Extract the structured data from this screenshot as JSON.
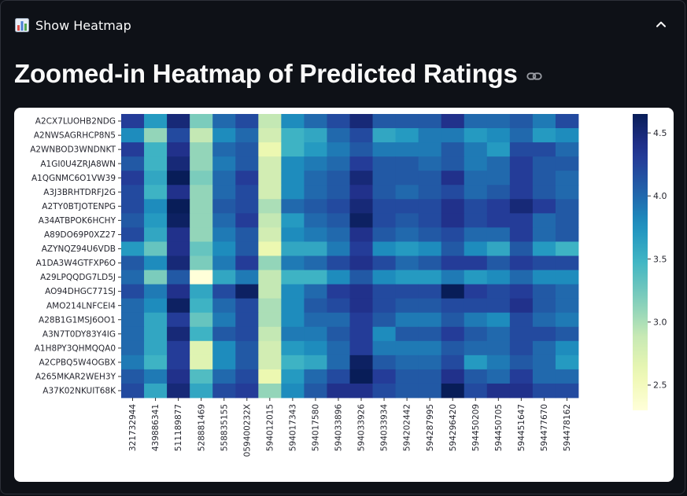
{
  "expander": {
    "label": "Show Heatmap",
    "icon": "bar-chart-icon",
    "chevron": "chevron-up-icon"
  },
  "page": {
    "title": "Zoomed-in Heatmap of Predicted Ratings",
    "link_icon": "link-icon"
  },
  "chart_data": {
    "type": "heatmap",
    "colormap": "YlGnBu",
    "vmin": 2.3,
    "vmax": 4.65,
    "colorbar_ticks": [
      "2.5",
      "3.0",
      "3.5",
      "4.0",
      "4.5"
    ],
    "rows": [
      "A2CX7LUOHB2NDG",
      "A2NWSAGRHCP8N5",
      "A2WNBOD3WNDNKT",
      "A1GI0U4ZRJA8WN",
      "A1QGNMC6O1VW39",
      "A3J3BRHTDRFJ2G",
      "A2TY0BTJOTENPG",
      "A34ATBPOK6HCHY",
      "A89DO69P0XZ27",
      "AZYNQZ94U6VDB",
      "A1DA3W4GTFXP6O",
      "A29LPQQDG7LD5J",
      "AO94DHGC771SJ",
      "AMO214LNFCEI4",
      "A28B1G1MSJ6OO1",
      "A3N7T0DY83Y4IG",
      "A1H8PY3QHMQQA0",
      "A2CPBQ5W4OGBX",
      "A265MKAR2WEH3Y",
      "A37K02NKUIT68K"
    ],
    "columns": [
      "321732944",
      "439886341",
      "511189877",
      "528881469",
      "558835155",
      "059400232X",
      "594012015",
      "594017343",
      "594017580",
      "594033896",
      "594033926",
      "594033934",
      "594202442",
      "594287995",
      "594296420",
      "594450209",
      "594450705",
      "594451647",
      "594477670",
      "594478162"
    ],
    "values": [
      [
        4.3,
        3.7,
        4.5,
        3.2,
        4.0,
        4.2,
        2.9,
        3.8,
        4.0,
        4.2,
        4.5,
        4.1,
        4.1,
        4.1,
        4.4,
        4.0,
        4.0,
        4.1,
        3.9,
        4.2
      ],
      [
        3.8,
        3.1,
        4.2,
        2.9,
        3.8,
        4.0,
        2.8,
        3.5,
        3.6,
        4.0,
        4.2,
        3.6,
        3.7,
        3.9,
        3.9,
        3.7,
        3.8,
        4.0,
        3.7,
        3.8
      ],
      [
        4.3,
        3.5,
        4.4,
        3.1,
        4.0,
        4.1,
        2.6,
        3.5,
        3.7,
        3.9,
        4.1,
        3.9,
        3.9,
        3.9,
        4.1,
        3.9,
        3.7,
        4.2,
        4.2,
        4.0
      ],
      [
        4.1,
        3.5,
        4.5,
        3.1,
        3.9,
        4.1,
        2.8,
        3.8,
        3.9,
        4.0,
        4.3,
        4.1,
        4.1,
        4.0,
        4.1,
        3.9,
        4.0,
        4.3,
        4.1,
        4.1
      ],
      [
        4.3,
        3.6,
        4.7,
        3.2,
        4.0,
        4.3,
        2.8,
        3.8,
        4.0,
        4.1,
        4.5,
        4.1,
        4.1,
        4.1,
        4.4,
        4.0,
        4.0,
        4.3,
        4.1,
        4.0
      ],
      [
        4.2,
        3.5,
        4.4,
        3.1,
        4.0,
        4.2,
        2.8,
        3.8,
        4.0,
        4.1,
        4.4,
        4.1,
        4.0,
        4.1,
        4.2,
        4.0,
        4.1,
        4.3,
        4.1,
        4.0
      ],
      [
        4.2,
        3.8,
        4.7,
        3.1,
        4.1,
        4.2,
        3.0,
        4.0,
        4.1,
        4.2,
        4.5,
        4.2,
        4.2,
        4.2,
        4.4,
        4.2,
        4.3,
        4.5,
        4.3,
        4.1
      ],
      [
        4.1,
        3.7,
        4.6,
        3.1,
        4.0,
        4.3,
        2.9,
        3.7,
        4.0,
        4.1,
        4.6,
        4.2,
        4.1,
        4.2,
        4.4,
        4.2,
        4.3,
        4.3,
        4.0,
        4.1
      ],
      [
        4.2,
        3.6,
        4.4,
        3.1,
        3.9,
        4.1,
        2.8,
        3.8,
        3.9,
        4.0,
        4.4,
        4.1,
        4.0,
        4.1,
        4.2,
        4.0,
        4.0,
        4.3,
        4.0,
        4.1
      ],
      [
        3.7,
        3.3,
        4.4,
        3.3,
        3.8,
        4.1,
        2.6,
        3.6,
        3.6,
        3.9,
        4.3,
        3.8,
        3.7,
        3.8,
        4.1,
        3.8,
        3.6,
        4.1,
        3.7,
        3.5
      ],
      [
        4.1,
        3.8,
        4.5,
        3.2,
        3.9,
        4.3,
        3.1,
        3.9,
        4.0,
        4.2,
        4.4,
        4.2,
        4.0,
        4.1,
        4.3,
        4.3,
        4.1,
        4.3,
        4.2,
        4.2
      ],
      [
        4.0,
        3.2,
        4.1,
        2.3,
        3.6,
        3.9,
        2.9,
        3.5,
        3.5,
        3.8,
        4.1,
        3.8,
        3.7,
        3.7,
        3.9,
        3.7,
        3.8,
        4.0,
        3.8,
        3.8
      ],
      [
        4.2,
        3.9,
        4.4,
        3.6,
        4.2,
        4.6,
        2.9,
        3.8,
        4.0,
        4.3,
        4.4,
        4.2,
        4.2,
        4.2,
        4.7,
        4.3,
        4.2,
        4.3,
        4.1,
        4.0
      ],
      [
        4.0,
        3.8,
        4.6,
        3.5,
        4.0,
        4.2,
        3.0,
        3.8,
        4.1,
        4.2,
        4.4,
        4.2,
        4.1,
        4.1,
        4.2,
        4.2,
        4.2,
        4.4,
        4.1,
        4.0
      ],
      [
        4.0,
        3.6,
        4.3,
        3.3,
        3.9,
        4.2,
        3.0,
        3.8,
        4.0,
        4.0,
        4.3,
        4.1,
        3.9,
        3.9,
        4.1,
        3.9,
        3.8,
        4.2,
        4.0,
        3.9
      ],
      [
        4.0,
        3.6,
        4.5,
        3.5,
        4.1,
        4.2,
        2.9,
        3.9,
        3.9,
        4.1,
        4.3,
        3.8,
        4.1,
        4.1,
        4.3,
        4.1,
        4.0,
        4.2,
        4.2,
        4.1
      ],
      [
        4.0,
        3.6,
        4.3,
        2.7,
        3.8,
        4.1,
        2.8,
        3.7,
        3.8,
        4.0,
        4.3,
        3.9,
        3.9,
        3.9,
        4.1,
        4.0,
        4.0,
        4.2,
        4.0,
        3.8
      ],
      [
        3.9,
        3.5,
        4.3,
        2.7,
        3.8,
        4.1,
        2.8,
        3.5,
        3.6,
        4.0,
        4.6,
        4.1,
        4.0,
        4.0,
        4.2,
        3.7,
        3.9,
        4.1,
        4.0,
        3.7
      ],
      [
        4.1,
        3.9,
        4.4,
        3.4,
        4.0,
        4.2,
        2.6,
        3.7,
        4.0,
        4.2,
        4.7,
        4.3,
        4.1,
        4.1,
        4.4,
        4.1,
        4.0,
        4.3,
        4.0,
        4.0
      ],
      [
        4.2,
        3.6,
        4.5,
        3.6,
        4.2,
        4.3,
        3.1,
        3.8,
        4.1,
        4.4,
        4.4,
        4.2,
        4.1,
        4.1,
        4.7,
        4.2,
        4.4,
        4.4,
        4.2,
        4.2
      ]
    ]
  }
}
